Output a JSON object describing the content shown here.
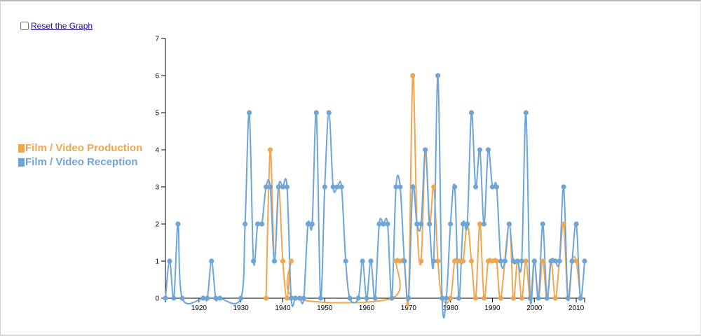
{
  "reset": {
    "label": "Reset the Graph",
    "checked": false
  },
  "chart_data": {
    "type": "line",
    "title": "",
    "xlabel": "",
    "ylabel": "",
    "xlim": [
      1912,
      2012
    ],
    "ylim": [
      0,
      7
    ],
    "x_ticks": [
      1920,
      1930,
      1940,
      1950,
      1960,
      1970,
      1980,
      1990,
      2000,
      2010
    ],
    "y_ticks": [
      0,
      1,
      2,
      3,
      4,
      5,
      6,
      7
    ],
    "grid": false,
    "legend_position": "left",
    "series": [
      {
        "name": "Film / Video Production",
        "color": "#f0a64f",
        "points": [
          [
            1936,
            0
          ],
          [
            1937,
            4
          ],
          [
            1938,
            1
          ],
          [
            1939,
            3
          ],
          [
            1940,
            1
          ],
          [
            1941,
            0
          ],
          [
            1942,
            1
          ],
          [
            1943,
            0
          ],
          [
            1966,
            0
          ],
          [
            1967,
            1
          ],
          [
            1968,
            1
          ],
          [
            1969,
            1
          ],
          [
            1970,
            0
          ],
          [
            1971,
            6
          ],
          [
            1972,
            2
          ],
          [
            1973,
            1
          ],
          [
            1974,
            4
          ],
          [
            1975,
            2
          ],
          [
            1976,
            3
          ],
          [
            1977,
            1
          ],
          [
            1978,
            0
          ],
          [
            1980,
            0
          ],
          [
            1981,
            1
          ],
          [
            1982,
            1
          ],
          [
            1983,
            1
          ],
          [
            1984,
            2
          ],
          [
            1985,
            1
          ],
          [
            1986,
            0
          ],
          [
            1987,
            2
          ],
          [
            1988,
            0
          ],
          [
            1989,
            1
          ],
          [
            1990,
            1
          ],
          [
            1991,
            1
          ],
          [
            1992,
            0
          ],
          [
            1994,
            2
          ],
          [
            1995,
            0
          ],
          [
            1996,
            1
          ],
          [
            1997,
            0
          ],
          [
            1998,
            1
          ],
          [
            1999,
            0
          ],
          [
            2000,
            1
          ],
          [
            2001,
            0
          ],
          [
            2002,
            1
          ],
          [
            2003,
            0
          ],
          [
            2004,
            1
          ],
          [
            2005,
            0
          ],
          [
            2006,
            1
          ],
          [
            2007,
            2
          ],
          [
            2008,
            0
          ],
          [
            2009,
            1
          ],
          [
            2010,
            1
          ],
          [
            2011,
            0
          ]
        ]
      },
      {
        "name": "Film / Video Reception",
        "color": "#6ea5d8",
        "points": [
          [
            1912,
            0
          ],
          [
            1913,
            1
          ],
          [
            1914,
            0
          ],
          [
            1915,
            2
          ],
          [
            1916,
            0
          ],
          [
            1921,
            0
          ],
          [
            1922,
            0
          ],
          [
            1923,
            1
          ],
          [
            1924,
            0
          ],
          [
            1925,
            0
          ],
          [
            1930,
            0
          ],
          [
            1931,
            2
          ],
          [
            1932,
            5
          ],
          [
            1933,
            1
          ],
          [
            1934,
            2
          ],
          [
            1935,
            2
          ],
          [
            1936,
            3
          ],
          [
            1937,
            3
          ],
          [
            1938,
            1
          ],
          [
            1939,
            3
          ],
          [
            1940,
            3
          ],
          [
            1941,
            3
          ],
          [
            1942,
            0
          ],
          [
            1943,
            0
          ],
          [
            1944,
            0
          ],
          [
            1945,
            0
          ],
          [
            1946,
            2
          ],
          [
            1947,
            2
          ],
          [
            1948,
            5
          ],
          [
            1949,
            0
          ],
          [
            1950,
            3
          ],
          [
            1951,
            5
          ],
          [
            1952,
            3
          ],
          [
            1953,
            3
          ],
          [
            1954,
            3
          ],
          [
            1955,
            1
          ],
          [
            1956,
            0
          ],
          [
            1958,
            0
          ],
          [
            1959,
            1
          ],
          [
            1960,
            0
          ],
          [
            1961,
            1
          ],
          [
            1962,
            0
          ],
          [
            1963,
            2
          ],
          [
            1964,
            2
          ],
          [
            1965,
            2
          ],
          [
            1966,
            0
          ],
          [
            1967,
            3
          ],
          [
            1968,
            3
          ],
          [
            1969,
            1
          ],
          [
            1970,
            0
          ],
          [
            1971,
            3
          ],
          [
            1972,
            2
          ],
          [
            1973,
            2
          ],
          [
            1974,
            4
          ],
          [
            1975,
            2
          ],
          [
            1976,
            1
          ],
          [
            1977,
            6
          ],
          [
            1978,
            0
          ],
          [
            1979,
            0
          ],
          [
            1980,
            2
          ],
          [
            1981,
            3
          ],
          [
            1982,
            0
          ],
          [
            1983,
            2
          ],
          [
            1984,
            2
          ],
          [
            1985,
            5
          ],
          [
            1986,
            3
          ],
          [
            1987,
            4
          ],
          [
            1988,
            2
          ],
          [
            1989,
            4
          ],
          [
            1990,
            3
          ],
          [
            1991,
            3
          ],
          [
            1992,
            1
          ],
          [
            1993,
            1
          ],
          [
            1994,
            2
          ],
          [
            1995,
            1
          ],
          [
            1996,
            1
          ],
          [
            1997,
            1
          ],
          [
            1998,
            5
          ],
          [
            1999,
            0
          ],
          [
            2000,
            1
          ],
          [
            2001,
            0
          ],
          [
            2002,
            2
          ],
          [
            2003,
            0
          ],
          [
            2004,
            1
          ],
          [
            2005,
            1
          ],
          [
            2006,
            1
          ],
          [
            2007,
            3
          ],
          [
            2008,
            0
          ],
          [
            2009,
            1
          ],
          [
            2010,
            2
          ],
          [
            2011,
            0
          ],
          [
            2012,
            1
          ]
        ]
      }
    ]
  }
}
